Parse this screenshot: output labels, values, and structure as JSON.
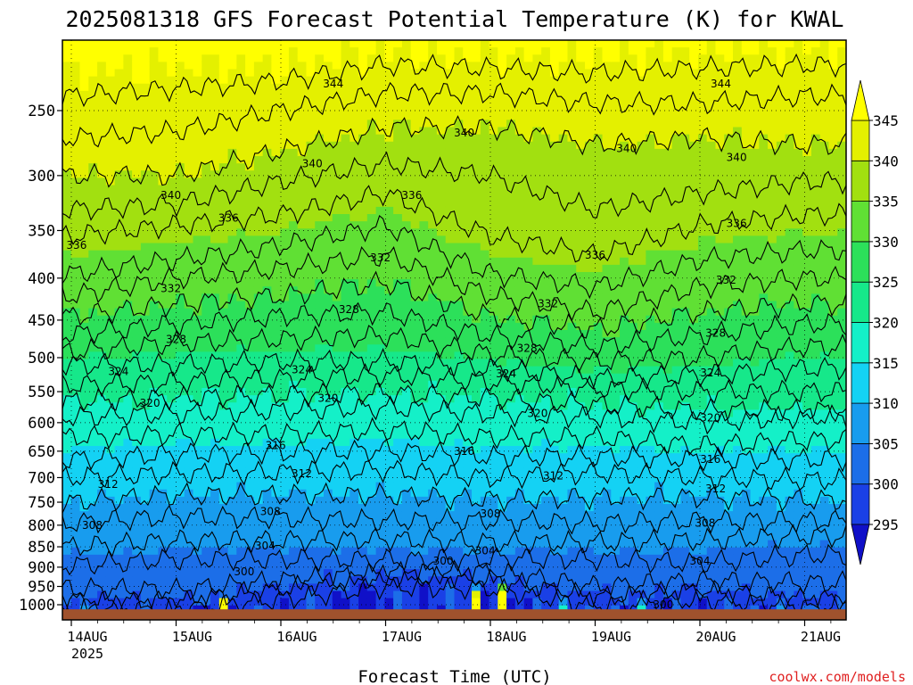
{
  "chart_data": {
    "type": "heatmap",
    "title": "2025081318 GFS Forecast Potential Temperature (K) for KWAL",
    "xlabel": "Forecast Time (UTC)",
    "ylabel": "",
    "x_tick_labels": [
      "14AUG",
      "15AUG",
      "16AUG",
      "17AUG",
      "18AUG",
      "19AUG",
      "20AUG",
      "21AUG"
    ],
    "x_year_label": "2025",
    "y_tick_labels": [
      "250",
      "300",
      "350",
      "400",
      "450",
      "500",
      "550",
      "600",
      "650",
      "700",
      "750",
      "800",
      "850",
      "900",
      "950",
      "1000"
    ],
    "y_scale": "log",
    "y_inverted": true,
    "ylim": [
      1025,
      200
    ],
    "grid": true,
    "colorbar": {
      "levels": [
        295,
        300,
        305,
        310,
        315,
        320,
        325,
        330,
        335,
        340,
        345
      ],
      "colors": [
        "#1010c8",
        "#1a40e6",
        "#1c6ee8",
        "#189cee",
        "#14d2f4",
        "#14f0c8",
        "#16e88a",
        "#2ce05a",
        "#60e034",
        "#a2e010",
        "#e4f000",
        "#ffff00"
      ]
    },
    "contour_interval": 2,
    "isentropes": [
      {
        "value": 298,
        "p": [
          [
            0,
            1005
          ],
          [
            1,
            1008
          ],
          [
            2,
            985
          ],
          [
            3,
            950
          ],
          [
            4,
            955
          ],
          [
            5,
            1000
          ],
          [
            6,
            985
          ],
          [
            7,
            1000
          ]
        ]
      },
      {
        "value": 300,
        "p": [
          [
            0,
            990
          ],
          [
            1,
            990
          ],
          [
            2,
            955
          ],
          [
            3,
            925
          ],
          [
            4,
            930
          ],
          [
            5,
            980
          ],
          [
            6,
            960
          ],
          [
            7,
            985
          ]
        ]
      },
      {
        "value": 302,
        "p": [
          [
            0,
            955
          ],
          [
            1,
            960
          ],
          [
            2,
            935
          ],
          [
            3,
            915
          ],
          [
            4,
            912
          ],
          [
            5,
            950
          ],
          [
            6,
            935
          ],
          [
            7,
            940
          ]
        ]
      },
      {
        "value": 304,
        "p": [
          [
            0,
            895
          ],
          [
            1,
            880
          ],
          [
            2,
            880
          ],
          [
            3,
            882
          ],
          [
            4,
            878
          ],
          [
            5,
            880
          ],
          [
            6,
            890
          ],
          [
            7,
            870
          ]
        ]
      },
      {
        "value": 306,
        "p": [
          [
            0,
            850
          ],
          [
            1,
            835
          ],
          [
            2,
            835
          ],
          [
            3,
            832
          ],
          [
            4,
            840
          ],
          [
            5,
            840
          ],
          [
            6,
            835
          ],
          [
            7,
            825
          ]
        ]
      },
      {
        "value": 308,
        "p": [
          [
            0,
            795
          ],
          [
            1,
            780
          ],
          [
            2,
            785
          ],
          [
            3,
            790
          ],
          [
            4,
            790
          ],
          [
            5,
            795
          ],
          [
            6,
            790
          ],
          [
            7,
            790
          ]
        ]
      },
      {
        "value": 310,
        "p": [
          [
            0,
            750
          ],
          [
            1,
            735
          ],
          [
            2,
            735
          ],
          [
            3,
            735
          ],
          [
            4,
            745
          ],
          [
            5,
            740
          ],
          [
            6,
            740
          ],
          [
            7,
            745
          ]
        ]
      },
      {
        "value": 312,
        "p": [
          [
            0,
            700
          ],
          [
            1,
            692
          ],
          [
            2,
            690
          ],
          [
            3,
            685
          ],
          [
            4,
            700
          ],
          [
            5,
            690
          ],
          [
            6,
            700
          ],
          [
            7,
            705
          ]
        ]
      },
      {
        "value": 314,
        "p": [
          [
            0,
            665
          ],
          [
            1,
            655
          ],
          [
            2,
            652
          ],
          [
            3,
            648
          ],
          [
            4,
            660
          ],
          [
            5,
            660
          ],
          [
            6,
            665
          ],
          [
            7,
            665
          ]
        ]
      },
      {
        "value": 316,
        "p": [
          [
            0,
            625
          ],
          [
            1,
            620
          ],
          [
            2,
            620
          ],
          [
            3,
            612
          ],
          [
            4,
            625
          ],
          [
            5,
            625
          ],
          [
            6,
            640
          ],
          [
            7,
            630
          ]
        ]
      },
      {
        "value": 318,
        "p": [
          [
            0,
            590
          ],
          [
            1,
            585
          ],
          [
            2,
            580
          ],
          [
            3,
            575
          ],
          [
            4,
            585
          ],
          [
            5,
            590
          ],
          [
            6,
            600
          ],
          [
            7,
            590
          ]
        ]
      },
      {
        "value": 320,
        "p": [
          [
            0,
            565
          ],
          [
            1,
            560
          ],
          [
            2,
            555
          ],
          [
            3,
            552
          ],
          [
            4,
            560
          ],
          [
            5,
            570
          ],
          [
            6,
            580
          ],
          [
            7,
            580
          ]
        ]
      },
      {
        "value": 322,
        "p": [
          [
            0,
            540
          ],
          [
            1,
            535
          ],
          [
            2,
            530
          ],
          [
            3,
            525
          ],
          [
            4,
            535
          ],
          [
            5,
            545
          ],
          [
            6,
            550
          ],
          [
            7,
            550
          ]
        ]
      },
      {
        "value": 324,
        "p": [
          [
            0,
            510
          ],
          [
            1,
            510
          ],
          [
            2,
            505
          ],
          [
            3,
            505
          ],
          [
            4,
            515
          ],
          [
            5,
            530
          ],
          [
            6,
            525
          ],
          [
            7,
            515
          ]
        ]
      },
      {
        "value": 326,
        "p": [
          [
            0,
            492
          ],
          [
            1,
            480
          ],
          [
            2,
            475
          ],
          [
            3,
            470
          ],
          [
            4,
            495
          ],
          [
            5,
            505
          ],
          [
            6,
            500
          ],
          [
            7,
            485
          ]
        ]
      },
      {
        "value": 328,
        "p": [
          [
            0,
            468
          ],
          [
            1,
            455
          ],
          [
            2,
            445
          ],
          [
            3,
            440
          ],
          [
            4,
            470
          ],
          [
            5,
            485
          ],
          [
            6,
            470
          ],
          [
            7,
            455
          ]
        ]
      },
      {
        "value": 330,
        "p": [
          [
            0,
            445
          ],
          [
            1,
            430
          ],
          [
            2,
            420
          ],
          [
            3,
            405
          ],
          [
            4,
            445
          ],
          [
            5,
            462
          ],
          [
            6,
            440
          ],
          [
            7,
            430
          ]
        ]
      },
      {
        "value": 332,
        "p": [
          [
            0,
            420
          ],
          [
            1,
            400
          ],
          [
            2,
            390
          ],
          [
            3,
            375
          ],
          [
            4,
            420
          ],
          [
            5,
            440
          ],
          [
            6,
            410
          ],
          [
            7,
            400
          ]
        ]
      },
      {
        "value": 334,
        "p": [
          [
            0,
            395
          ],
          [
            1,
            380
          ],
          [
            2,
            365
          ],
          [
            3,
            345
          ],
          [
            4,
            395
          ],
          [
            5,
            410
          ],
          [
            6,
            380
          ],
          [
            7,
            370
          ]
        ]
      },
      {
        "value": 336,
        "p": [
          [
            0,
            355
          ],
          [
            1,
            345
          ],
          [
            2,
            335
          ],
          [
            3,
            315
          ],
          [
            4,
            355
          ],
          [
            5,
            375
          ],
          [
            6,
            345
          ],
          [
            7,
            335
          ]
        ]
      },
      {
        "value": 338,
        "p": [
          [
            0,
            330
          ],
          [
            1,
            325
          ],
          [
            2,
            305
          ],
          [
            3,
            290
          ],
          [
            4,
            300
          ],
          [
            5,
            330
          ],
          [
            6,
            315
          ],
          [
            7,
            305
          ]
        ]
      },
      {
        "value": 340,
        "p": [
          [
            0,
            300
          ],
          [
            1,
            300
          ],
          [
            2,
            280
          ],
          [
            3,
            262
          ],
          [
            4,
            262
          ],
          [
            5,
            275
          ],
          [
            6,
            270
          ],
          [
            7,
            275
          ]
        ]
      },
      {
        "value": 342,
        "p": [
          [
            0,
            270
          ],
          [
            1,
            265
          ],
          [
            2,
            250
          ],
          [
            3,
            238
          ],
          [
            4,
            238
          ],
          [
            5,
            245
          ],
          [
            6,
            245
          ],
          [
            7,
            240
          ]
        ]
      },
      {
        "value": 344,
        "p": [
          [
            0,
            240
          ],
          [
            1,
            235
          ],
          [
            2,
            230
          ],
          [
            3,
            220
          ],
          [
            4,
            222
          ],
          [
            5,
            225
          ],
          [
            6,
            222
          ],
          [
            7,
            220
          ]
        ]
      }
    ],
    "contour_labels": [
      {
        "text": "344",
        "d": 2.5,
        "p": 232
      },
      {
        "text": "340",
        "d": 3.75,
        "p": 266
      },
      {
        "text": "340",
        "d": 5.3,
        "p": 278
      },
      {
        "text": "340",
        "d": 6.35,
        "p": 285
      },
      {
        "text": "344",
        "d": 6.2,
        "p": 232
      },
      {
        "text": "340",
        "d": 2.3,
        "p": 290
      },
      {
        "text": "340",
        "d": 0.95,
        "p": 317
      },
      {
        "text": "336",
        "d": 3.25,
        "p": 317
      },
      {
        "text": "336",
        "d": 1.5,
        "p": 338
      },
      {
        "text": "336",
        "d": 0.05,
        "p": 365
      },
      {
        "text": "336",
        "d": 5.0,
        "p": 375
      },
      {
        "text": "336",
        "d": 6.35,
        "p": 343
      },
      {
        "text": "332",
        "d": 2.95,
        "p": 378
      },
      {
        "text": "332",
        "d": 0.95,
        "p": 412
      },
      {
        "text": "332",
        "d": 4.55,
        "p": 430
      },
      {
        "text": "332",
        "d": 6.25,
        "p": 402
      },
      {
        "text": "328",
        "d": 2.65,
        "p": 437
      },
      {
        "text": "328",
        "d": 1.0,
        "p": 475
      },
      {
        "text": "328",
        "d": 4.35,
        "p": 487
      },
      {
        "text": "328",
        "d": 6.15,
        "p": 467
      },
      {
        "text": "324",
        "d": 0.45,
        "p": 520
      },
      {
        "text": "324",
        "d": 2.2,
        "p": 517
      },
      {
        "text": "324",
        "d": 4.15,
        "p": 523
      },
      {
        "text": "324",
        "d": 6.1,
        "p": 522
      },
      {
        "text": "320",
        "d": 0.75,
        "p": 568
      },
      {
        "text": "320",
        "d": 2.45,
        "p": 560
      },
      {
        "text": "320",
        "d": 4.45,
        "p": 585
      },
      {
        "text": "320",
        "d": 6.1,
        "p": 592
      },
      {
        "text": "316",
        "d": 1.95,
        "p": 640
      },
      {
        "text": "316",
        "d": 3.75,
        "p": 650
      },
      {
        "text": "316",
        "d": 6.1,
        "p": 665
      },
      {
        "text": "312",
        "d": 0.35,
        "p": 713
      },
      {
        "text": "312",
        "d": 2.2,
        "p": 692
      },
      {
        "text": "312",
        "d": 4.6,
        "p": 697
      },
      {
        "text": "312",
        "d": 6.15,
        "p": 722
      },
      {
        "text": "308",
        "d": 0.2,
        "p": 800
      },
      {
        "text": "308",
        "d": 1.9,
        "p": 770
      },
      {
        "text": "308",
        "d": 4.0,
        "p": 775
      },
      {
        "text": "308",
        "d": 6.05,
        "p": 795
      },
      {
        "text": "304",
        "d": 1.85,
        "p": 848
      },
      {
        "text": "304",
        "d": 3.95,
        "p": 860
      },
      {
        "text": "304",
        "d": 6.0,
        "p": 885
      },
      {
        "text": "300",
        "d": 1.65,
        "p": 912
      },
      {
        "text": "300",
        "d": 3.55,
        "p": 885
      },
      {
        "text": "300",
        "d": 5.65,
        "p": 1000
      }
    ]
  },
  "credit": "coolwx.com/models"
}
